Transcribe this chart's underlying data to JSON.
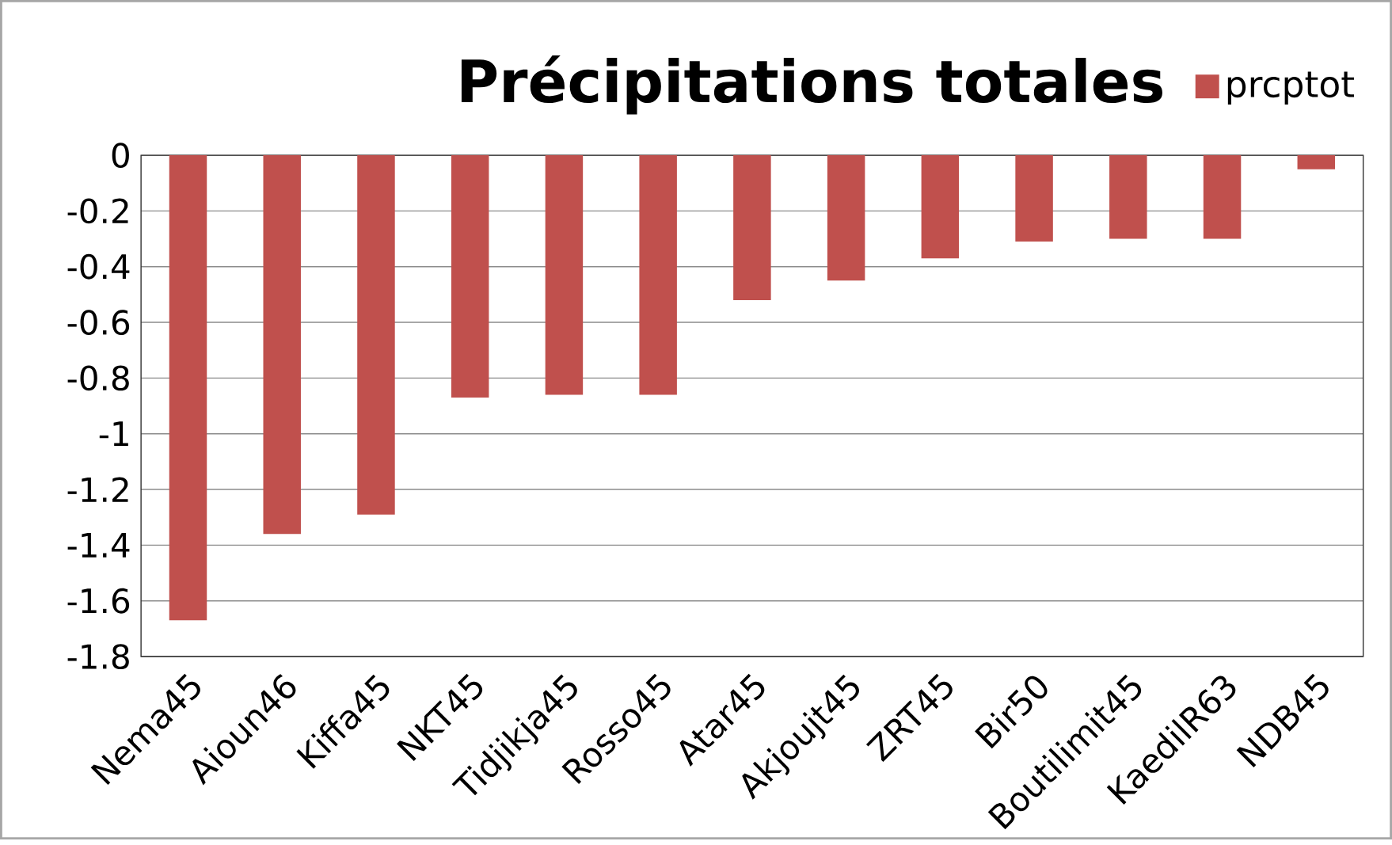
{
  "chart_data": {
    "type": "bar",
    "title": "Précipitations totales",
    "categories": [
      "Nema45",
      "Aioun46",
      "Kiffa45",
      "NKT45",
      "Tidjikja45",
      "Rosso45",
      "Atar45",
      "Akjoujt45",
      "ZRT45",
      "Bir50",
      "Boutilimit45",
      "KaedilR63",
      "NDB45"
    ],
    "series": [
      {
        "name": "prcptot",
        "color": "#c0504d",
        "values": [
          -1.67,
          -1.36,
          -1.29,
          -0.87,
          -0.86,
          -0.86,
          -0.52,
          -0.45,
          -0.37,
          -0.31,
          -0.3,
          -0.3,
          -0.05
        ]
      }
    ],
    "ylim": [
      -1.8,
      0
    ],
    "yticks": [
      0,
      -0.2,
      -0.4,
      -0.6,
      -0.8,
      -1,
      -1.2,
      -1.4,
      -1.6,
      -1.8
    ],
    "grid": "y",
    "legend": "top right"
  }
}
